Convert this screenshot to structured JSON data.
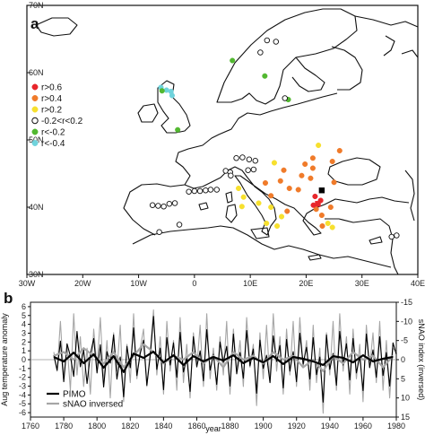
{
  "figure": {
    "panel_a": "a",
    "panel_b": "b"
  },
  "chart_data": [
    {
      "type": "scatter",
      "panel": "a",
      "x_ticks": [
        "30W",
        "20W",
        "10W",
        "0",
        "10E",
        "20E",
        "30E",
        "40E"
      ],
      "y_ticks": [
        "30N",
        "40N",
        "50N",
        "60N",
        "70N"
      ],
      "xlim": [
        -30,
        40
      ],
      "ylim": [
        30,
        70
      ],
      "legend": {
        "placement": "left",
        "entries": [
          {
            "label": "r>0.6",
            "color": "#e8262b",
            "marker": "filled"
          },
          {
            "label": "r>0.4",
            "color": "#f07b2a",
            "marker": "filled"
          },
          {
            "label": "r>0.2",
            "color": "#f7e02e",
            "marker": "filled"
          },
          {
            "label": "-0.2<r<0.2",
            "color": "#111111",
            "marker": "open"
          },
          {
            "label": "r<-0.2",
            "color": "#52b830",
            "marker": "filled"
          },
          {
            "label": "r<-0.4",
            "color": "#6fd3dc",
            "marker": "filled"
          }
        ]
      },
      "points": [
        {
          "lon": -6.0,
          "lat": 57.8,
          "cls": "cyan"
        },
        {
          "lon": -5.0,
          "lat": 57.4,
          "cls": "cyan"
        },
        {
          "lon": -4.2,
          "lat": 57.2,
          "cls": "cyan"
        },
        {
          "lon": -4.0,
          "lat": 56.6,
          "cls": "cyan"
        },
        {
          "lon": -5.8,
          "lat": 57.3,
          "cls": "green"
        },
        {
          "lon": -3.0,
          "lat": 51.5,
          "cls": "green"
        },
        {
          "lon": 6.8,
          "lat": 61.8,
          "cls": "green"
        },
        {
          "lon": 12.6,
          "lat": 59.5,
          "cls": "green"
        },
        {
          "lon": 16.8,
          "lat": 56.0,
          "cls": "green"
        },
        {
          "lon": 11.8,
          "lat": 63.0,
          "cls": "open"
        },
        {
          "lon": 13.0,
          "lat": 64.8,
          "cls": "open"
        },
        {
          "lon": 14.6,
          "lat": 64.6,
          "cls": "open"
        },
        {
          "lon": 16.2,
          "lat": 56.2,
          "cls": "open"
        },
        {
          "lon": 7.5,
          "lat": 47.3,
          "cls": "open"
        },
        {
          "lon": 8.6,
          "lat": 47.4,
          "cls": "open"
        },
        {
          "lon": 9.8,
          "lat": 47.1,
          "cls": "open"
        },
        {
          "lon": 10.9,
          "lat": 46.9,
          "cls": "open"
        },
        {
          "lon": 5.6,
          "lat": 45.4,
          "cls": "open"
        },
        {
          "lon": 6.4,
          "lat": 45.2,
          "cls": "open"
        },
        {
          "lon": 9.6,
          "lat": 45.5,
          "cls": "open"
        },
        {
          "lon": 10.6,
          "lat": 45.6,
          "cls": "open"
        },
        {
          "lon": 6.5,
          "lat": 44.7,
          "cls": "open"
        },
        {
          "lon": 4.0,
          "lat": 42.6,
          "cls": "open"
        },
        {
          "lon": -1.0,
          "lat": 42.3,
          "cls": "open"
        },
        {
          "lon": 0.0,
          "lat": 42.4,
          "cls": "open"
        },
        {
          "lon": 1.0,
          "lat": 42.4,
          "cls": "open"
        },
        {
          "lon": 2.0,
          "lat": 42.5,
          "cls": "open"
        },
        {
          "lon": 2.9,
          "lat": 42.6,
          "cls": "open"
        },
        {
          "lon": -7.5,
          "lat": 40.3,
          "cls": "open"
        },
        {
          "lon": -6.5,
          "lat": 40.2,
          "cls": "open"
        },
        {
          "lon": -5.5,
          "lat": 40.1,
          "cls": "open"
        },
        {
          "lon": -4.5,
          "lat": 40.5,
          "cls": "open"
        },
        {
          "lon": -3.5,
          "lat": 40.6,
          "cls": "open"
        },
        {
          "lon": -6.3,
          "lat": 36.3,
          "cls": "open"
        },
        {
          "lon": -2.7,
          "lat": 37.4,
          "cls": "open"
        },
        {
          "lon": 35.3,
          "lat": 35.6,
          "cls": "open"
        },
        {
          "lon": 36.2,
          "lat": 35.8,
          "cls": "open"
        },
        {
          "lon": 14.3,
          "lat": 46.6,
          "cls": "yellow"
        },
        {
          "lon": 22.2,
          "lat": 49.2,
          "cls": "yellow"
        },
        {
          "lon": 7.9,
          "lat": 42.8,
          "cls": "yellow"
        },
        {
          "lon": 8.8,
          "lat": 41.5,
          "cls": "yellow"
        },
        {
          "lon": 8.5,
          "lat": 40.1,
          "cls": "yellow"
        },
        {
          "lon": 11.5,
          "lat": 40.6,
          "cls": "yellow"
        },
        {
          "lon": 13.7,
          "lat": 40.0,
          "cls": "yellow"
        },
        {
          "lon": 15.6,
          "lat": 38.6,
          "cls": "yellow"
        },
        {
          "lon": 14.8,
          "lat": 37.2,
          "cls": "yellow"
        },
        {
          "lon": 12.9,
          "lat": 37.6,
          "cls": "yellow"
        },
        {
          "lon": 23.9,
          "lat": 37.6,
          "cls": "yellow"
        },
        {
          "lon": 24.7,
          "lat": 37.0,
          "cls": "yellow"
        },
        {
          "lon": 26.0,
          "lat": 48.4,
          "cls": "orange"
        },
        {
          "lon": 21.2,
          "lat": 47.3,
          "cls": "orange"
        },
        {
          "lon": 24.7,
          "lat": 46.8,
          "cls": "orange"
        },
        {
          "lon": 19.8,
          "lat": 46.4,
          "cls": "orange"
        },
        {
          "lon": 21.2,
          "lat": 45.8,
          "cls": "orange"
        },
        {
          "lon": 16.0,
          "lat": 45.5,
          "cls": "orange"
        },
        {
          "lon": 19.2,
          "lat": 44.7,
          "cls": "orange"
        },
        {
          "lon": 20.8,
          "lat": 44.3,
          "cls": "orange"
        },
        {
          "lon": 25.0,
          "lat": 43.7,
          "cls": "orange"
        },
        {
          "lon": 15.4,
          "lat": 43.9,
          "cls": "orange"
        },
        {
          "lon": 17.0,
          "lat": 42.8,
          "cls": "orange"
        },
        {
          "lon": 18.6,
          "lat": 42.6,
          "cls": "orange"
        },
        {
          "lon": 12.7,
          "lat": 43.6,
          "cls": "orange"
        },
        {
          "lon": 13.7,
          "lat": 41.7,
          "cls": "orange"
        },
        {
          "lon": 24.4,
          "lat": 40.0,
          "cls": "orange"
        },
        {
          "lon": 21.8,
          "lat": 39.7,
          "cls": "orange"
        },
        {
          "lon": 22.8,
          "lat": 38.8,
          "cls": "orange"
        },
        {
          "lon": 16.6,
          "lat": 39.4,
          "cls": "orange"
        },
        {
          "lon": 22.9,
          "lat": 37.2,
          "cls": "orange"
        },
        {
          "lon": 21.6,
          "lat": 41.6,
          "cls": "red"
        },
        {
          "lon": 22.6,
          "lat": 41.0,
          "cls": "red"
        },
        {
          "lon": 21.3,
          "lat": 40.3,
          "cls": "red"
        }
      ],
      "squares": [
        {
          "lon": 22.8,
          "lat": 42.5,
          "color": "#000000"
        },
        {
          "lon": 22.1,
          "lat": 40.5,
          "color": "#e8262b"
        }
      ]
    },
    {
      "type": "line",
      "panel": "b",
      "xlabel": "year",
      "ylabel": "Aug temperature anomaly",
      "ylabel_right": "sNAO index (inversed)",
      "x_ticks": [
        1760,
        1780,
        1800,
        1820,
        1840,
        1860,
        1880,
        1900,
        1920,
        1940,
        1960,
        1980
      ],
      "xlim": [
        1760,
        1980
      ],
      "y_ticks": [
        6,
        5,
        4,
        3,
        2,
        1,
        0,
        -1,
        -2,
        -3,
        -4,
        -5,
        -6
      ],
      "ylim": [
        -6.5,
        6.5
      ],
      "y2_ticks": [
        -15,
        -10,
        -5,
        0,
        5,
        10,
        15
      ],
      "y2lim": [
        -15,
        15
      ],
      "y2_inverted": true,
      "series": [
        {
          "name": "PIMO",
          "color": "#000000",
          "axis": "left",
          "x": [
            1774,
            1776,
            1778,
            1780,
            1782,
            1784,
            1786,
            1788,
            1790,
            1792,
            1794,
            1796,
            1798,
            1800,
            1802,
            1804,
            1806,
            1808,
            1810,
            1812,
            1814,
            1816,
            1818,
            1820,
            1822,
            1824,
            1826,
            1828,
            1830,
            1832,
            1834,
            1836,
            1838,
            1840,
            1842,
            1844,
            1846,
            1848,
            1850,
            1852,
            1854,
            1856,
            1858,
            1860,
            1862,
            1864,
            1866,
            1868,
            1870,
            1872,
            1874,
            1876,
            1878,
            1880,
            1882,
            1884,
            1886,
            1888,
            1890,
            1892,
            1894,
            1896,
            1898,
            1900,
            1902,
            1904,
            1906,
            1908,
            1910,
            1912,
            1914,
            1916,
            1918,
            1920,
            1922,
            1924,
            1926,
            1928,
            1930,
            1932,
            1934,
            1936,
            1938,
            1940,
            1942,
            1944,
            1946,
            1948,
            1950,
            1952,
            1954,
            1956,
            1958,
            1960,
            1962,
            1964,
            1966,
            1968,
            1970,
            1972,
            1974,
            1976,
            1978,
            1980
          ],
          "values": [
            0.5,
            -1.2,
            2.1,
            -2.5,
            1.8,
            0.4,
            -1.9,
            3.2,
            -0.8,
            1.1,
            -2.7,
            0.6,
            2.4,
            -1.5,
            1.7,
            -3.1,
            0.9,
            -0.4,
            2.8,
            -2.2,
            0.3,
            -4.2,
            1.5,
            -0.9,
            3.6,
            -1.8,
            0.7,
            2.2,
            -2.9,
            0.4,
            4.9,
            -1.1,
            1.3,
            -3.4,
            2.5,
            -0.6,
            1.9,
            -2.0,
            3.1,
            -1.4,
            0.2,
            -3.6,
            2.6,
            -0.8,
            1.0,
            -2.4,
            3.4,
            -1.2,
            0.6,
            -2.8,
            2.0,
            -0.3,
            1.5,
            -3.0,
            2.9,
            -1.6,
            0.8,
            -2.1,
            3.3,
            -0.7,
            1.2,
            -3.8,
            2.2,
            -1.0,
            0.5,
            -2.6,
            2.7,
            -0.2,
            1.6,
            -3.2,
            2.3,
            -1.3,
            0.9,
            -2.5,
            3.0,
            -0.5,
            1.4,
            -2.2,
            2.5,
            -1.7,
            0.3,
            -4.8,
            2.8,
            -1.1,
            0.7,
            -2.9,
            3.2,
            -0.6,
            1.8,
            -2.3,
            2.4,
            -1.5,
            0.4,
            -3.5,
            2.9,
            -0.9,
            1.1,
            -2.0,
            2.6,
            -1.8,
            0.8,
            -3.0,
            1.9,
            0.6
          ]
        },
        {
          "name": "sNAO inversed",
          "color": "#a6a6a6",
          "axis": "right",
          "x": [
            1774,
            1776,
            1778,
            1780,
            1782,
            1784,
            1786,
            1788,
            1790,
            1792,
            1794,
            1796,
            1798,
            1800,
            1802,
            1804,
            1806,
            1808,
            1810,
            1812,
            1814,
            1816,
            1818,
            1820,
            1822,
            1824,
            1826,
            1828,
            1830,
            1832,
            1834,
            1836,
            1838,
            1840,
            1842,
            1844,
            1846,
            1848,
            1850,
            1852,
            1854,
            1856,
            1858,
            1860,
            1862,
            1864,
            1866,
            1868,
            1870,
            1872,
            1874,
            1876,
            1878,
            1880,
            1882,
            1884,
            1886,
            1888,
            1890,
            1892,
            1894,
            1896,
            1898,
            1900,
            1902,
            1904,
            1906,
            1908,
            1910,
            1912,
            1914,
            1916,
            1918,
            1920,
            1922,
            1924,
            1926,
            1928,
            1930,
            1932,
            1934,
            1936,
            1938,
            1940,
            1942,
            1944,
            1946,
            1948,
            1950,
            1952,
            1954,
            1956,
            1958,
            1960,
            1962,
            1964,
            1966,
            1968,
            1970,
            1972,
            1974,
            1976,
            1978,
            1980
          ],
          "values": [
            -2,
            3,
            -10,
            5,
            -4,
            8,
            -12,
            4,
            -6,
            7,
            -3,
            9,
            -8,
            2,
            -11,
            6,
            -5,
            10,
            -7,
            3,
            -9,
            11,
            -4,
            6,
            -12,
            5,
            -3,
            -8,
            7,
            -2,
            -13,
            4,
            -6,
            9,
            -10,
            3,
            -5,
            8,
            -11,
            6,
            -4,
            10,
            -7,
            2,
            -9,
            7,
            -12,
            5,
            -3,
            8,
            -6,
            4,
            -10,
            9,
            -8,
            3,
            -5,
            7,
            -11,
            2,
            -4,
            12,
            -7,
            5,
            -9,
            6,
            -12,
            3,
            -6,
            9,
            -8,
            4,
            -10,
            7,
            -11,
            2,
            -5,
            8,
            -9,
            6,
            -3,
            14,
            -7,
            4,
            -10,
            8,
            -12,
            3,
            -6,
            9,
            -8,
            5,
            -4,
            11,
            -9,
            2,
            -7,
            6,
            -10,
            8,
            -5,
            10,
            -3,
            -2
          ]
        },
        {
          "name": "",
          "color": "#000000",
          "axis": "left",
          "smoothed": true,
          "x": [
            1774,
            1780,
            1786,
            1792,
            1798,
            1804,
            1810,
            1816,
            1822,
            1828,
            1834,
            1840,
            1846,
            1852,
            1858,
            1864,
            1870,
            1876,
            1882,
            1888,
            1894,
            1900,
            1906,
            1912,
            1918,
            1924,
            1930,
            1936,
            1942,
            1948,
            1954,
            1960,
            1966,
            1972,
            1978
          ],
          "values": [
            0.3,
            -0.2,
            0.8,
            -0.4,
            0.6,
            -0.9,
            0.4,
            -1.4,
            0.7,
            0.2,
            0.9,
            -0.3,
            0.5,
            -0.6,
            0.4,
            -0.2,
            0.3,
            -0.1,
            0.5,
            -0.4,
            0.2,
            -0.3,
            0.4,
            -0.5,
            0.3,
            0.1,
            -0.2,
            -0.6,
            0.4,
            0.2,
            -0.3,
            0.5,
            -0.2,
            0.1,
            0.3
          ]
        },
        {
          "name": "",
          "color": "#a6a6a6",
          "axis": "right",
          "smoothed": true,
          "x": [
            1774,
            1780,
            1786,
            1792,
            1798,
            1804,
            1810,
            1816,
            1822,
            1828,
            1834,
            1840,
            1846,
            1852,
            1858,
            1864,
            1870,
            1876,
            1882,
            1888,
            1894,
            1900,
            1906,
            1912,
            1918,
            1924,
            1930,
            1936,
            1942,
            1948,
            1954,
            1960,
            1966,
            1972,
            1978
          ],
          "values": [
            -1,
            -2,
            0,
            -3,
            -1,
            1,
            -2,
            2,
            -1,
            -4,
            -2,
            1,
            -1,
            0,
            -2,
            1,
            -1,
            2,
            -2,
            0,
            -1,
            1,
            -2,
            0,
            -1,
            2,
            0,
            3,
            -1,
            1,
            -2,
            0,
            -1,
            2,
            -1
          ]
        }
      ],
      "legend": {
        "placement": "bottom-left"
      }
    }
  ]
}
